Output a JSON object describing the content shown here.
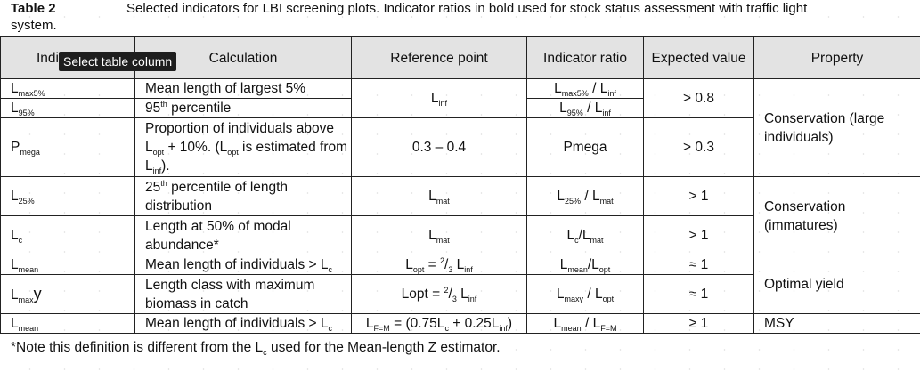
{
  "caption": {
    "label": "Table 2",
    "text": "Selected indicators for LBI screening plots. Indicator ratios in bold used for stock status assessment with traffic light",
    "text2": "system."
  },
  "tooltip": "Select table column",
  "headers": [
    "Indi",
    "Calculation",
    "Reference point",
    "Indicator ratio",
    "Expected value",
    "Property"
  ],
  "rows": {
    "lmax5": {
      "indicator": "L",
      "indicator_sub": "max5%",
      "calculation": "Mean length of largest 5%",
      "expected": "> 0.8"
    },
    "l95": {
      "indicator": "L",
      "indicator_sub": "95%",
      "calculation_pre": "95",
      "calculation_sup": "th",
      "calculation_post": " percentile"
    },
    "pmega": {
      "indicator": "P",
      "indicator_sub": "mega",
      "calculation": "Proportion of individuals above L",
      "calculation_s1": "opt",
      "calculation_m": " + 10%. (L",
      "calculation_s2": "opt",
      "calculation_m2": " is estimated from L",
      "calculation_s3": "inf",
      "calculation_end": ").",
      "reference": "0.3 – 0.4",
      "ratio": "Pmega",
      "expected": "> 0.3"
    },
    "l25": {
      "indicator": "L",
      "indicator_sub": "25%",
      "calculation_pre": "25",
      "calculation_sup": "th",
      "calculation_post": " percentile of length distribution",
      "reference": "L",
      "reference_sub": "mat",
      "ratio": "L",
      "ratio_sub1": "25%",
      "ratio_mid": " / L",
      "ratio_sub2": "mat",
      "expected": "> 1"
    },
    "lc": {
      "indicator": "L",
      "indicator_sub": "c",
      "calculation": "Length at 50% of modal abundance*",
      "reference": "L",
      "reference_sub": "mat",
      "ratio": "L",
      "ratio_sub1": "c",
      "ratio_mid": "/L",
      "ratio_sub2": "mat",
      "expected": "> 1"
    },
    "lmean": {
      "indicator": "L",
      "indicator_sub": "mean",
      "calculation": "Mean length of individuals > L",
      "calculation_sub": "c",
      "reference": "L",
      "reference_sub": "opt",
      "reference_mid": " = ",
      "reference_sup": "2",
      "reference_frac": "/",
      "reference_sub2": "3",
      "reference_end": " L",
      "reference_sub3": "inf",
      "ratio": "L",
      "ratio_sub1": "mean",
      "ratio_mid": "/L",
      "ratio_sub2": "opt",
      "expected": "≈ 1"
    },
    "lmaxy": {
      "indicator": "L",
      "indicator_sub": "max",
      "indicator_tail": "y",
      "calculation": "Length class with maximum biomass in catch",
      "reference": "Lopt = ",
      "reference_sup": "2",
      "reference_frac": "/",
      "reference_sub2": "3",
      "reference_end": " L",
      "reference_sub3": "inf",
      "ratio": "L",
      "ratio_sub1": "maxy",
      "ratio_mid": " / L",
      "ratio_sub2": "opt",
      "expected": "≈ 1"
    },
    "lmean_msy": {
      "indicator": "L",
      "indicator_sub": "mean",
      "calculation": "Mean length of individuals > L",
      "calculation_sub": "c",
      "reference": "L",
      "reference_sub": "F=M",
      "reference_mid": " = (0.75L",
      "reference_sub2": "c",
      "reference_mid2": " + 0.25L",
      "reference_sub3": "inf",
      "reference_end": ")",
      "ratio": "L",
      "ratio_sub1": "mean",
      "ratio_mid": " / L",
      "ratio_sub2": "F=M",
      "expected": "≥ 1",
      "property": "MSY"
    }
  },
  "shared": {
    "linf_reference": "L",
    "linf_reference_sub": "inf",
    "ratio_lmax5": "L",
    "ratio_lmax5_sub1": "max5%",
    "ratio_lmax5_mid": " / L",
    "ratio_lmax5_sub2": "inf",
    "ratio_l95": "L",
    "ratio_l95_sub1": "95%",
    "ratio_l95_mid": " / L",
    "ratio_l95_sub2": "inf",
    "property_conservation_large": "Conservation (large individuals)",
    "property_conservation_immatures": "Conservation (immatures)",
    "property_optimal_yield": "Optimal yield"
  },
  "note": {
    "pre": "*Note this definition is different from the L",
    "sub": "c",
    "post": " used for the Mean-length Z estimator."
  }
}
